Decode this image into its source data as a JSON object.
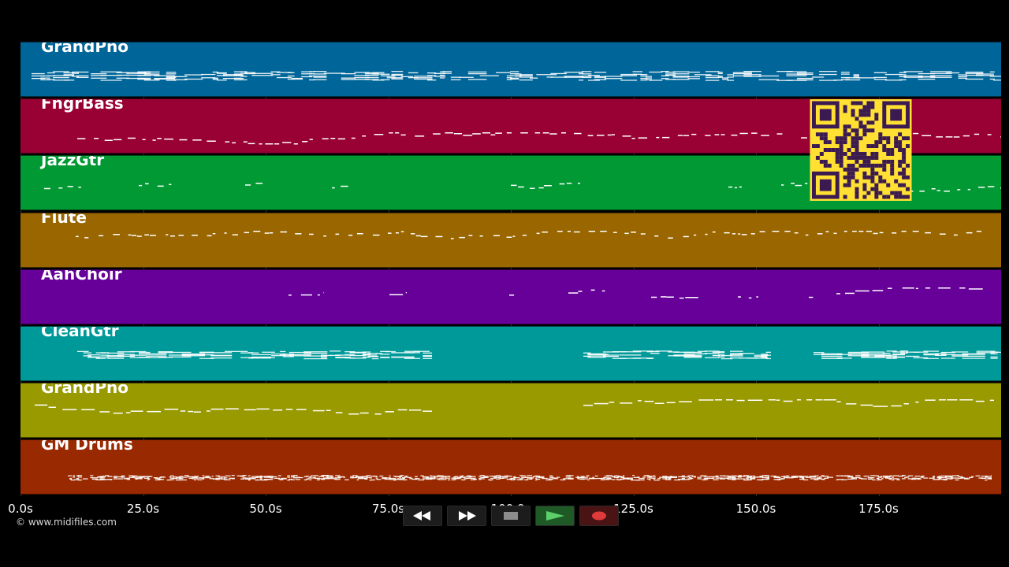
{
  "timeline": {
    "ticks": [
      "0.0s",
      "25.0s",
      "50.0s",
      "75.0s",
      "100.0s",
      "125.0s",
      "150.0s",
      "175.0s"
    ],
    "max_seconds": 200
  },
  "tracks": [
    {
      "name": "GrandPno",
      "color": "#006699"
    },
    {
      "name": "FngrBass",
      "color": "#990033"
    },
    {
      "name": "JazzGtr",
      "color": "#009933"
    },
    {
      "name": "Flute",
      "color": "#996600"
    },
    {
      "name": "AahChoir",
      "color": "#660099"
    },
    {
      "name": "CleanGtr",
      "color": "#009999"
    },
    {
      "name": "GrandPno",
      "color": "#999900"
    },
    {
      "name": "GM Drums",
      "color": "#992900"
    }
  ],
  "footer": {
    "copyright": "© www.midifiles.com"
  },
  "controls": [
    {
      "name": "rewind-button",
      "icon": "rewind-icon"
    },
    {
      "name": "fast-forward-button",
      "icon": "fast-forward-icon"
    },
    {
      "name": "stop-button",
      "icon": "stop-icon"
    },
    {
      "name": "play-button",
      "icon": "play-icon"
    },
    {
      "name": "record-button",
      "icon": "record-icon"
    }
  ],
  "qr_code": {
    "color_bg": "#ffe033",
    "color_fg": "#3a1a50"
  }
}
